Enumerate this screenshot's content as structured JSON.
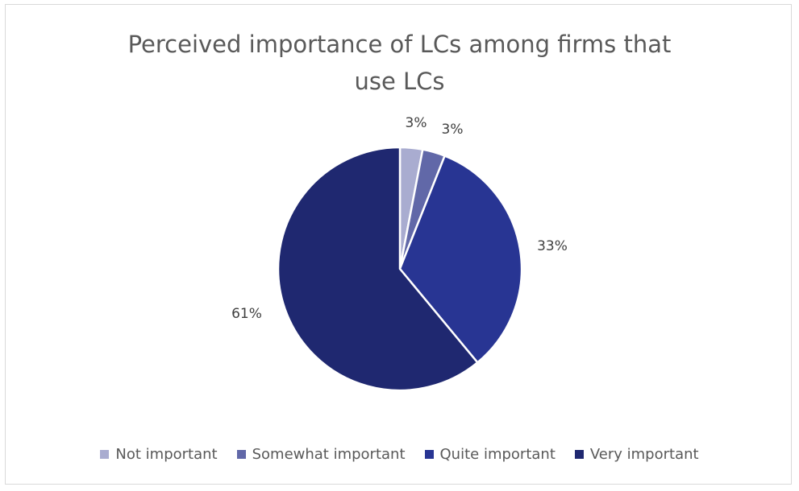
{
  "chart_data": {
    "type": "pie",
    "title_lines": [
      "Perceived importance of LCs among firms that",
      "use LCs"
    ],
    "categories": [
      "Not important",
      "Somewhat important",
      "Quite important",
      "Very important"
    ],
    "values": [
      3,
      3,
      33,
      61
    ],
    "data_labels": [
      "3%",
      "3%",
      "33%",
      "61%"
    ],
    "colors": [
      "#a9acd0",
      "#6168a8",
      "#283593",
      "#1f2870"
    ],
    "legend_position": "bottom",
    "start_angle_deg": 0,
    "direction": "clockwise"
  }
}
